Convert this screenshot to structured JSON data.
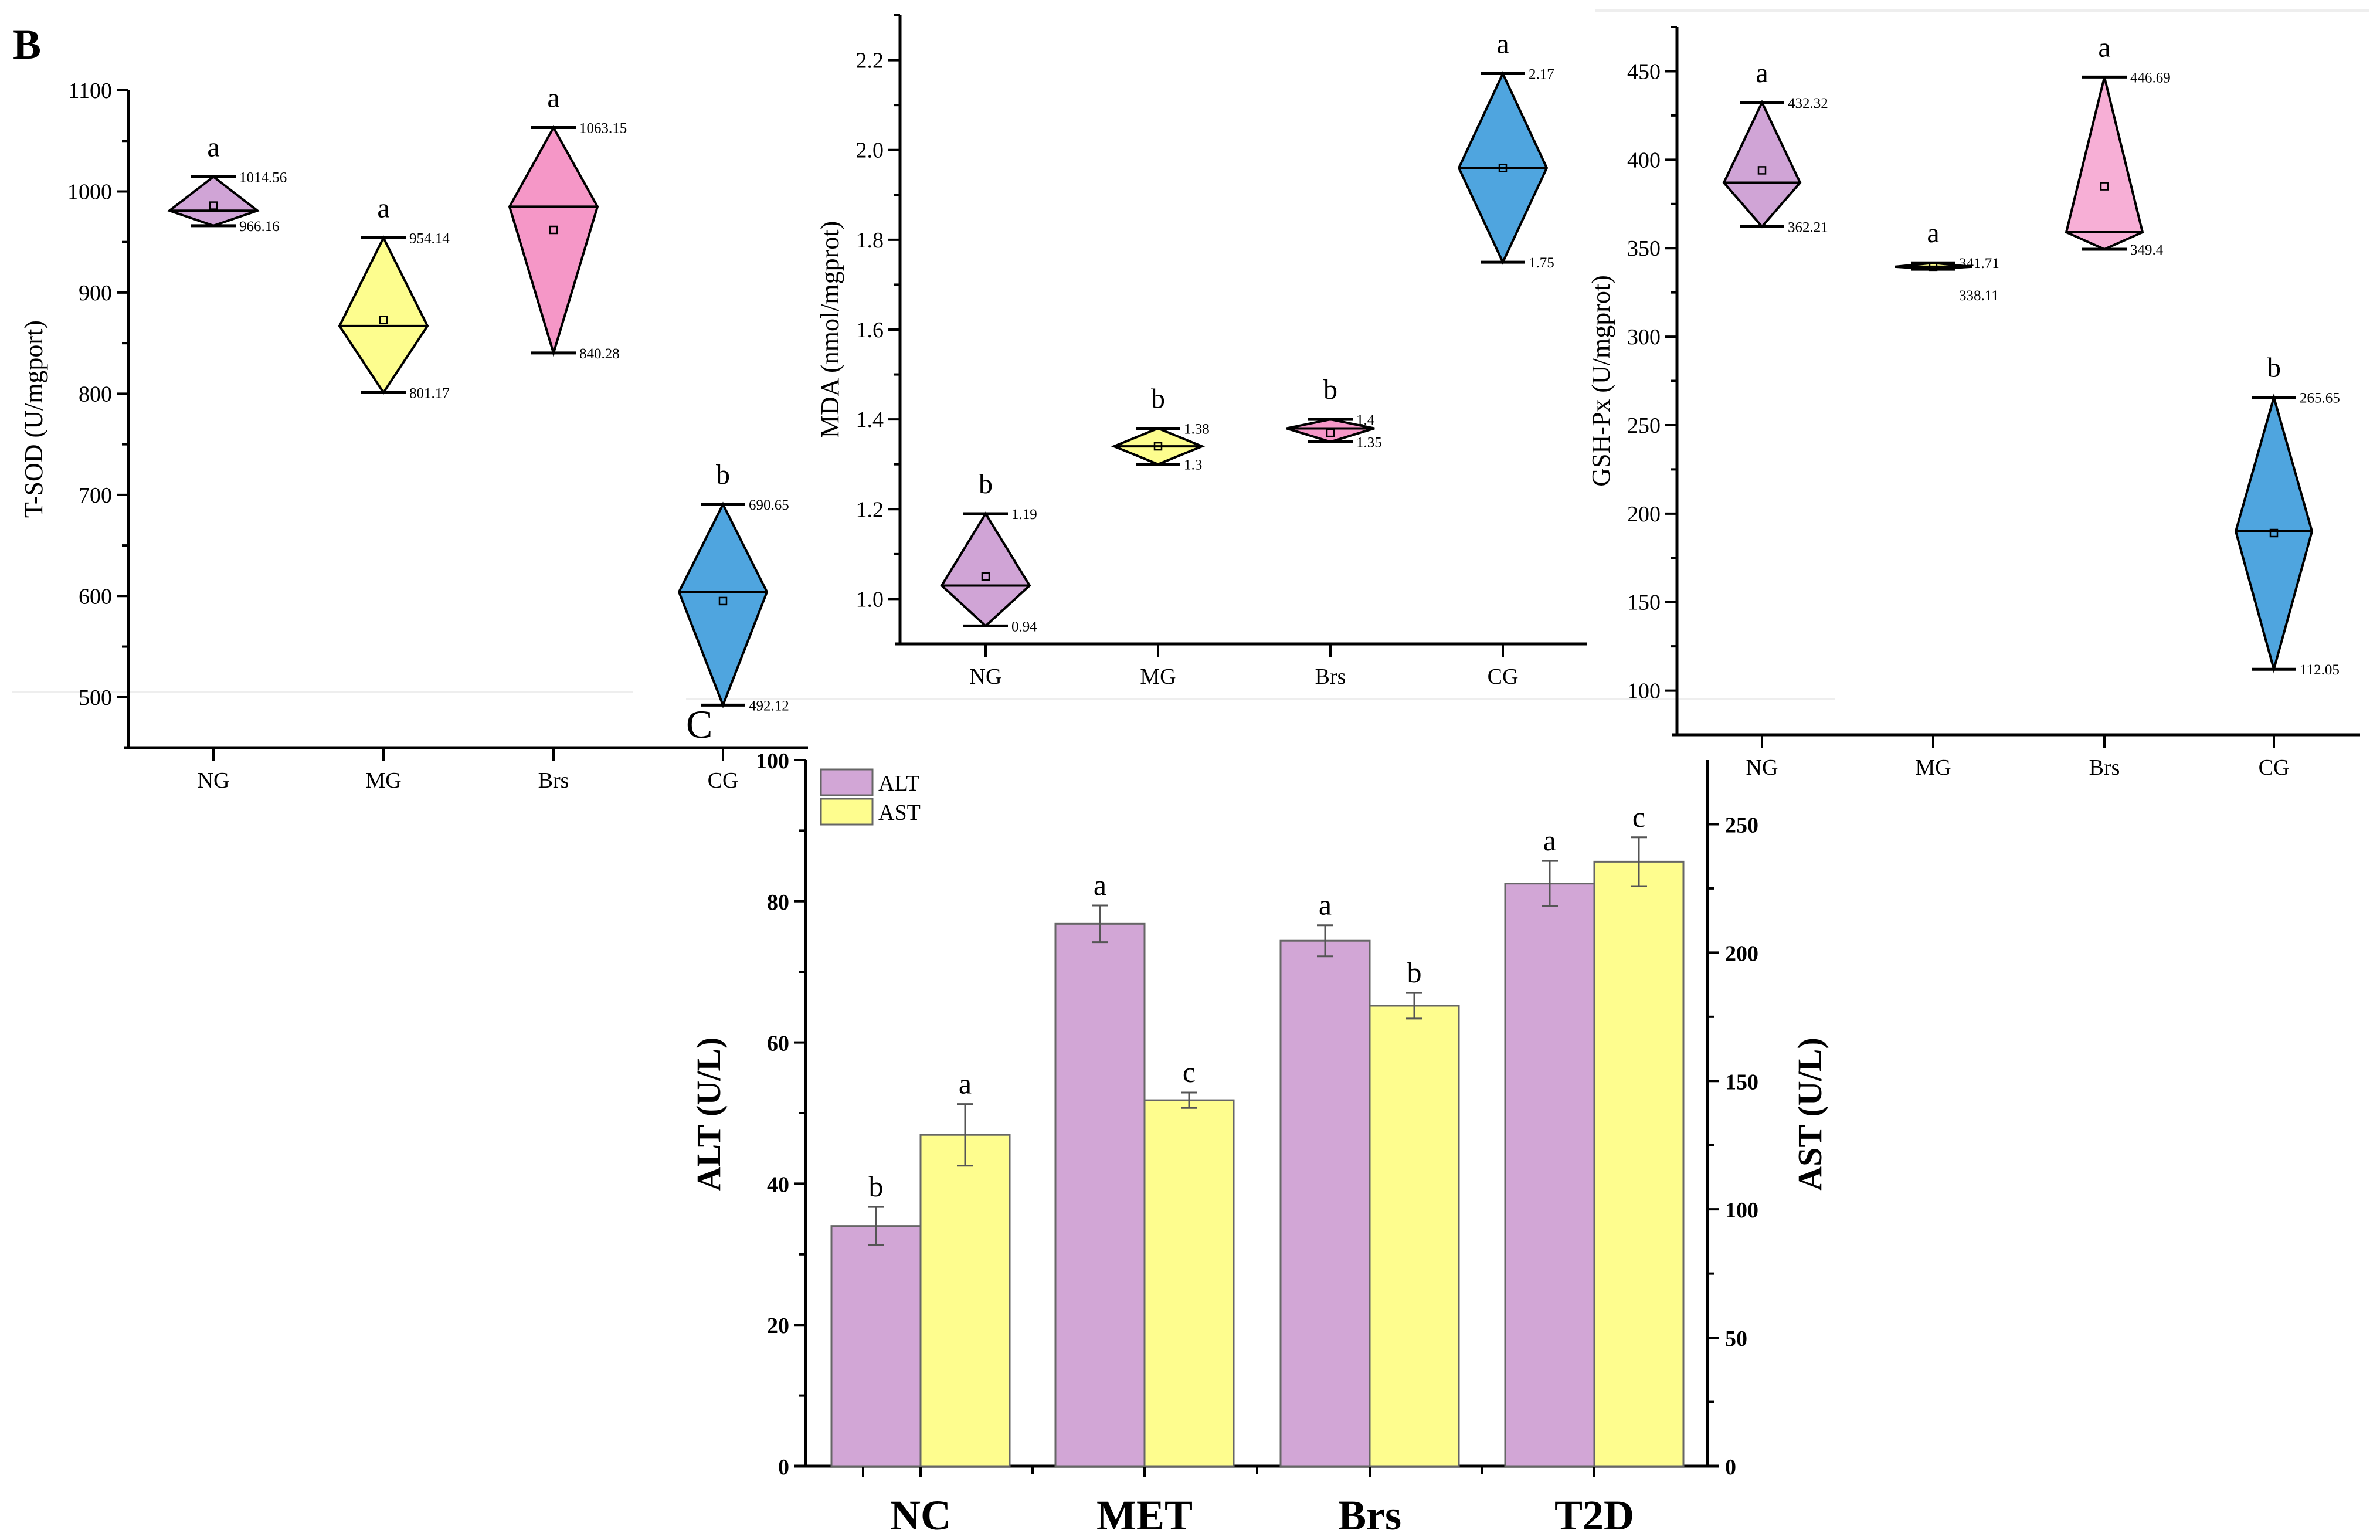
{
  "panel_labels": {
    "b": "B",
    "c": "C"
  },
  "chart_data": [
    {
      "type": "diamond-box",
      "panel": "B",
      "ylabel": "T-SOD (U/mgport)",
      "categories": [
        "NG",
        "MG",
        "Brs",
        "CG"
      ],
      "ylim": [
        450,
        1100
      ],
      "yticks": [
        500,
        600,
        700,
        800,
        900,
        1000,
        1100
      ],
      "colors": [
        "#d0a4d6",
        "#fdfd8e",
        "#f597c7",
        "#4fa5df"
      ],
      "groups": [
        {
          "max": 1014.56,
          "min": 966.16,
          "median": 981,
          "mean": 986,
          "max_label": "1014.56",
          "min_label": "966.16",
          "letter": "a"
        },
        {
          "max": 954.14,
          "min": 801.17,
          "median": 867,
          "mean": 873,
          "max_label": "954.14",
          "min_label": "801.17",
          "letter": "a"
        },
        {
          "max": 1063.15,
          "min": 840.28,
          "median": 985,
          "mean": 962,
          "max_label": "1063.15",
          "min_label": "840.28",
          "letter": "a"
        },
        {
          "max": 690.65,
          "min": 492.12,
          "median": 604,
          "mean": 595,
          "max_label": "690.65",
          "min_label": "492.12",
          "letter": "b"
        }
      ]
    },
    {
      "type": "diamond-box",
      "panel": "B",
      "ylabel": "MDA (nmol/mgprot)",
      "categories": [
        "NG",
        "MG",
        "Brs",
        "CG"
      ],
      "ylim": [
        0.9,
        2.3
      ],
      "yticks": [
        1.0,
        1.2,
        1.4,
        1.6,
        1.8,
        2.0,
        2.2
      ],
      "colors": [
        "#d0a4d6",
        "#fdfd8e",
        "#f597c7",
        "#4fa5df"
      ],
      "groups": [
        {
          "max": 1.19,
          "min": 0.94,
          "median": 1.03,
          "mean": 1.05,
          "max_label": "1.19",
          "min_label": "0.94",
          "letter": "b"
        },
        {
          "max": 1.38,
          "min": 1.3,
          "median": 1.34,
          "mean": 1.34,
          "max_label": "1.38",
          "min_label": "1.3",
          "letter": "b"
        },
        {
          "max": 1.4,
          "min": 1.35,
          "median": 1.38,
          "mean": 1.37,
          "max_label": "1.4",
          "min_label": "1.35",
          "letter": "b"
        },
        {
          "max": 2.17,
          "min": 1.75,
          "median": 1.96,
          "mean": 1.96,
          "max_label": "2.17",
          "min_label": "1.75",
          "letter": "a"
        }
      ]
    },
    {
      "type": "diamond-box",
      "panel": "B",
      "ylabel": "GSH-Px (U/mgprot)",
      "categories": [
        "NG",
        "MG",
        "Brs",
        "CG"
      ],
      "ylim": [
        75,
        475
      ],
      "yticks": [
        100,
        150,
        200,
        250,
        300,
        350,
        400,
        450
      ],
      "colors": [
        "#d0a4d6",
        "#fdfd8e",
        "#f7afd6",
        "#4fa5df"
      ],
      "groups": [
        {
          "max": 432.32,
          "min": 362.21,
          "median": 387,
          "mean": 394,
          "max_label": "432.32",
          "min_label": "362.21",
          "letter": "a"
        },
        {
          "max": 341.71,
          "min": 338.11,
          "median": 339.5,
          "mean": 339.5,
          "max_label": "341.71",
          "min_label": "338.11",
          "letter": "a"
        },
        {
          "max": 446.69,
          "min": 349.4,
          "median": 359,
          "mean": 385,
          "max_label": "446.69",
          "min_label": "349.4",
          "letter": "a"
        },
        {
          "max": 265.65,
          "min": 112.05,
          "median": 190,
          "mean": 189,
          "max_label": "265.65",
          "min_label": "112.05",
          "letter": "b"
        }
      ]
    },
    {
      "type": "bar",
      "panel": "C",
      "categories": [
        "NC",
        "MET",
        "Brs",
        "T2D"
      ],
      "ylabel": "ALT (U/L)",
      "ylabel_right": "AST (U/L)",
      "ylim": [
        0,
        100
      ],
      "yticks": [
        0,
        20,
        40,
        60,
        80,
        100
      ],
      "ylim_right": [
        0,
        275
      ],
      "yticks_right": [
        0,
        50,
        100,
        150,
        200,
        250
      ],
      "legend": "top-left",
      "series": [
        {
          "name": "ALT",
          "axis": "left",
          "color": "#d2a6d6",
          "values": [
            34,
            76.8,
            74.4,
            82.5
          ],
          "errors": [
            2.7,
            2.6,
            2.2,
            3.2
          ],
          "letters": [
            "b",
            "a",
            "a",
            "a"
          ]
        },
        {
          "name": "AST",
          "axis": "right",
          "color": "#fefd8e",
          "values": [
            129,
            142.5,
            179.3,
            235.4
          ],
          "errors": [
            12,
            3,
            5,
            9.5
          ],
          "letters": [
            "a",
            "c",
            "b",
            "c"
          ]
        }
      ]
    }
  ]
}
